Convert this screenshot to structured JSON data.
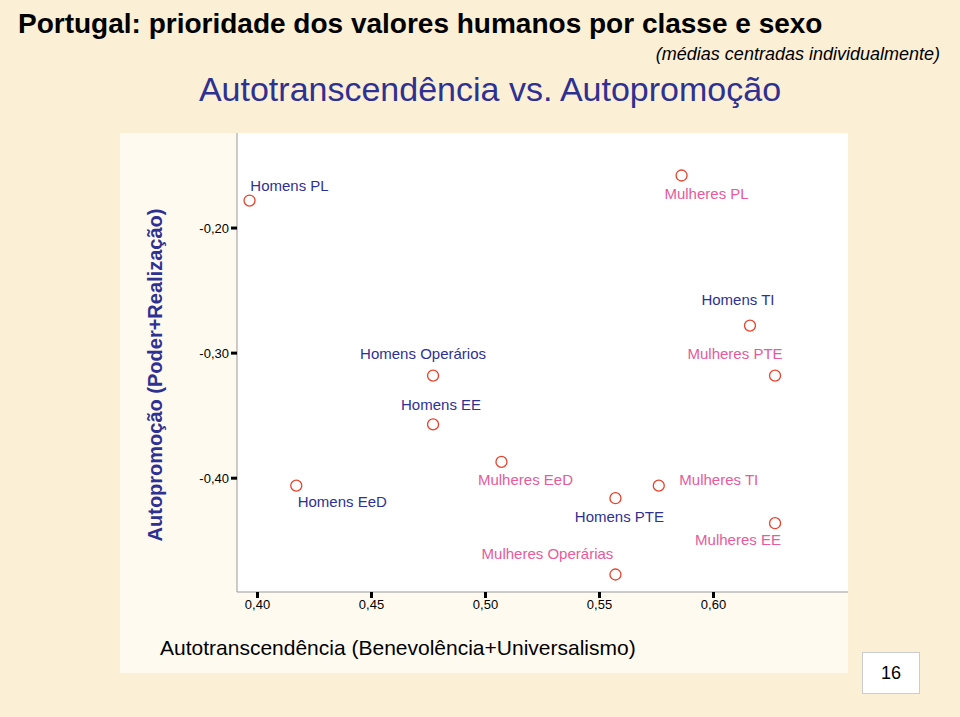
{
  "chart_data": {
    "type": "scatter",
    "title": "Portugal: prioridade dos valores humanos por classe e sexo",
    "subtitle": "(médias centradas individualmente)",
    "heading": "Autotranscendência vs. Autopromoção",
    "x_label": "Autotranscendência (Benevolência+Universalismo)",
    "y_label": "Autopromoção (Poder+Realização)",
    "page_number": "16",
    "color": "#e8412c",
    "marker": "circle",
    "grid": false,
    "xlim": [
      0.391,
      0.659
    ],
    "ylim": [
      -0.491,
      -0.124
    ],
    "xticks": [
      {
        "value": 0.4,
        "label": "0,40"
      },
      {
        "value": 0.45,
        "label": "0,45"
      },
      {
        "value": 0.5,
        "label": "0,50"
      },
      {
        "value": 0.55,
        "label": "0,55"
      },
      {
        "value": 0.6,
        "label": "0,60"
      }
    ],
    "yticks": [
      {
        "value": -0.4,
        "label": "-0,40"
      },
      {
        "value": -0.3,
        "label": "-0,30"
      },
      {
        "value": -0.2,
        "label": "-0,20"
      }
    ],
    "series": [
      {
        "color": "#2e3192",
        "points": [
          {
            "label": "Homens PL",
            "x": 0.3965,
            "y": -0.178
          },
          {
            "label": "Homens TI",
            "x": 0.616,
            "y": -0.278
          },
          {
            "label": "Homens Operários",
            "x": 0.477,
            "y": -0.318
          },
          {
            "label": "Homens EE",
            "x": 0.477,
            "y": -0.357
          },
          {
            "label": "Homens EeD",
            "x": 0.417,
            "y": -0.406
          },
          {
            "label": "Homens PTE",
            "x": 0.557,
            "y": -0.416
          }
        ]
      },
      {
        "color": "#e75a9b",
        "points": [
          {
            "label": "Mulheres PL",
            "x": 0.586,
            "y": -0.158
          },
          {
            "label": "Mulheres PTE",
            "x": 0.627,
            "y": -0.318
          },
          {
            "label": "Mulheres EeD",
            "x": 0.507,
            "y": -0.387
          },
          {
            "label": "Mulheres TI",
            "x": 0.576,
            "y": -0.406
          },
          {
            "label": "Mulheres EE",
            "x": 0.627,
            "y": -0.436
          },
          {
            "label": "Mulheres Operárias",
            "x": 0.557,
            "y": -0.477
          }
        ]
      }
    ]
  }
}
